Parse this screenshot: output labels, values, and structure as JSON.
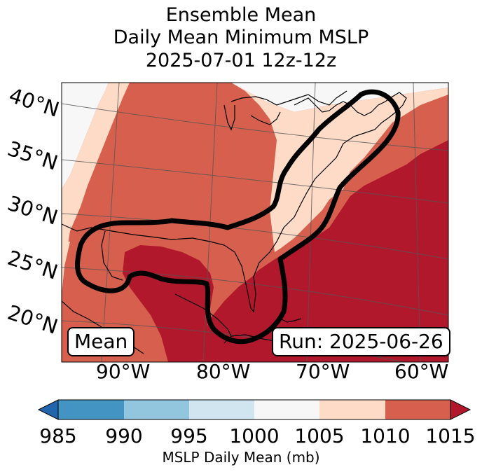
{
  "title": {
    "line1": "Ensemble Mean",
    "line2": "Daily Mean Minimum MSLP",
    "line3": "2025-07-01 12z-12z"
  },
  "map": {
    "lat_labels": [
      "40°N",
      "35°N",
      "30°N",
      "25°N",
      "20°N"
    ],
    "lon_labels": [
      "90°W",
      "80°W",
      "70°W",
      "60°W"
    ],
    "mean_label": "Mean",
    "run_label": "Run: 2025-06-26",
    "colors": {
      "c1000": "#f7f7f7",
      "c1005": "#fddbc7",
      "c1010": "#d6604d",
      "c1015": "#b2182b",
      "contour": "#000000",
      "gridline": "#555555",
      "coastline": "#000000"
    },
    "icon": "mslp-contour-map"
  },
  "colorbar": {
    "ticks": [
      "985",
      "990",
      "995",
      "1000",
      "1005",
      "1010",
      "1015"
    ],
    "title": "MSLP Daily Mean (mb)",
    "bins": [
      {
        "range": "<985",
        "color": "#2166ac"
      },
      {
        "range": "985-990",
        "color": "#4393c3"
      },
      {
        "range": "990-995",
        "color": "#92c5de"
      },
      {
        "range": "995-1000",
        "color": "#d1e5f0"
      },
      {
        "range": "1000-1005",
        "color": "#f7f7f7"
      },
      {
        "range": "1005-1010",
        "color": "#fddbc7"
      },
      {
        "range": "1010-1015",
        "color": "#d6604d"
      },
      {
        "range": ">1015",
        "color": "#b2182b"
      }
    ]
  }
}
